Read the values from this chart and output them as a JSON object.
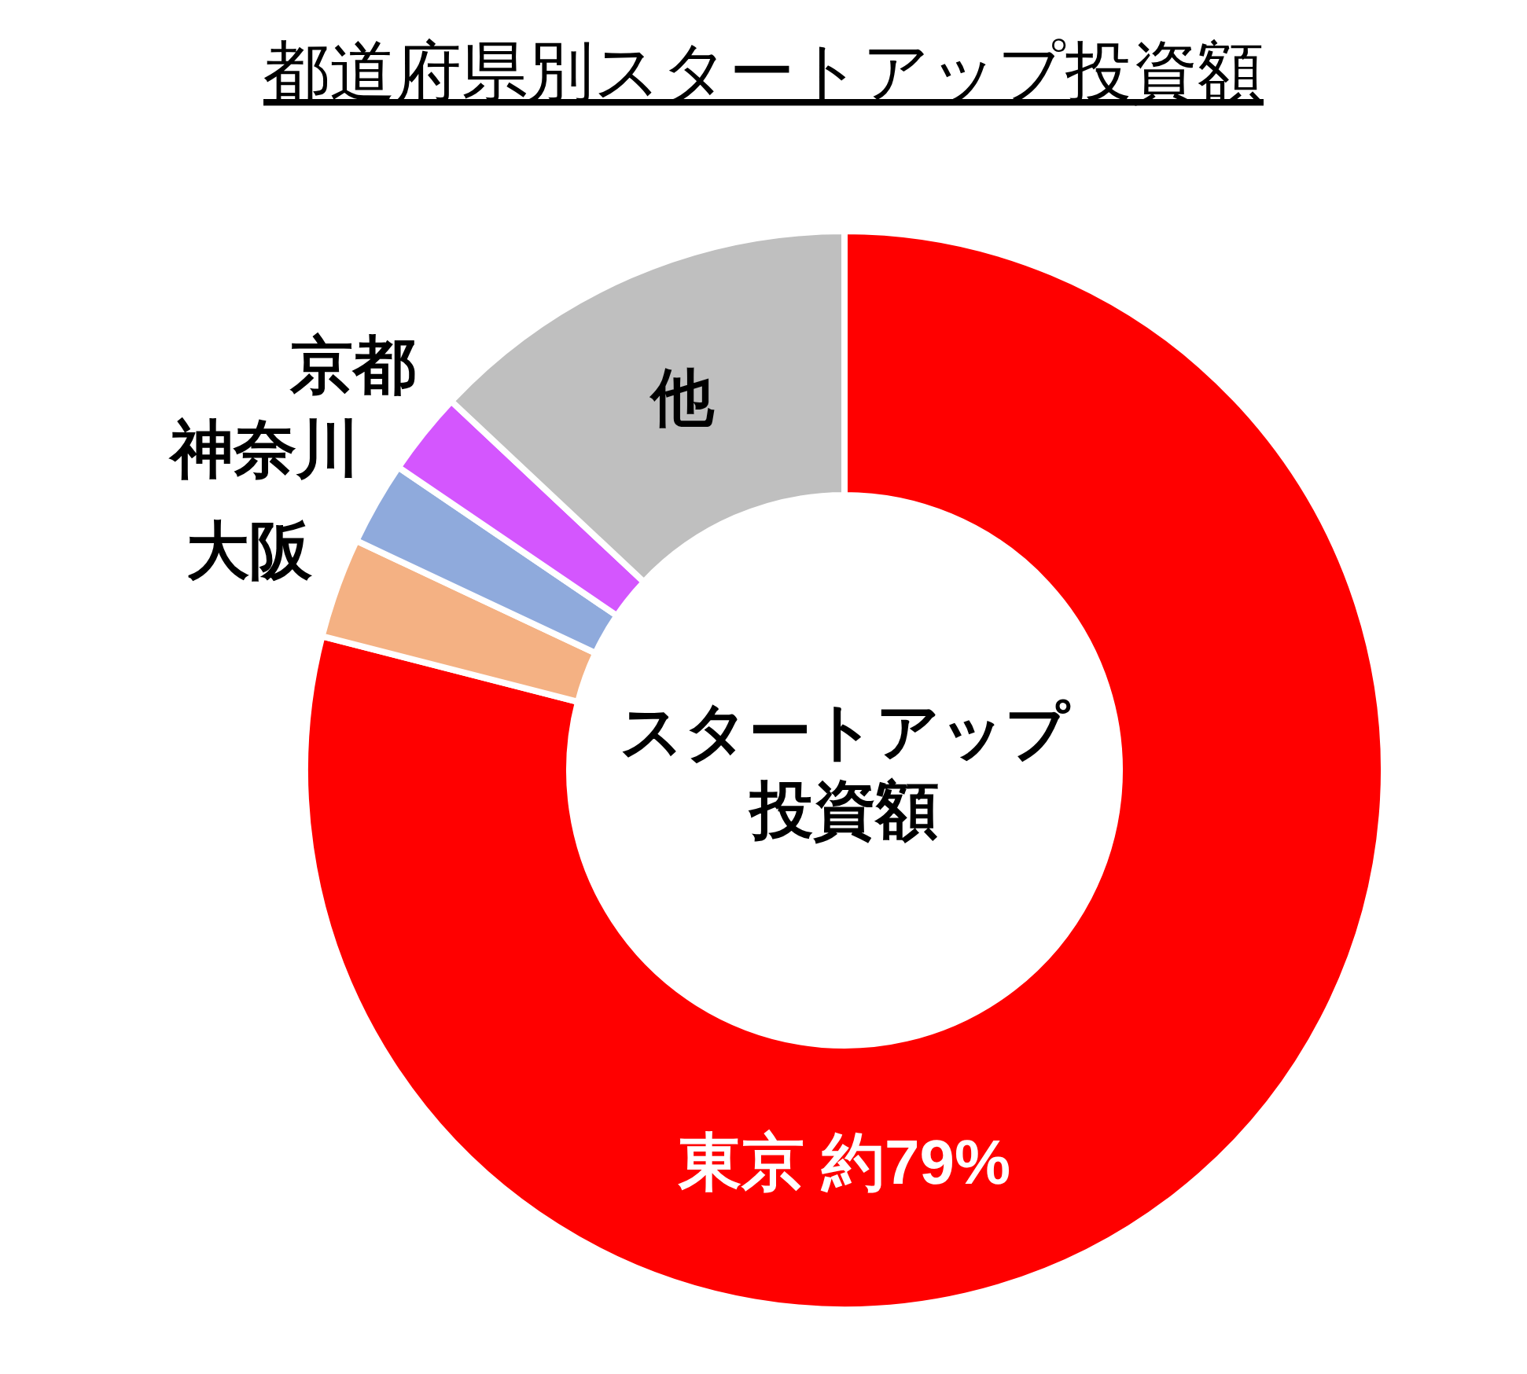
{
  "chart_data": {
    "type": "donut",
    "title": "都道府県別スタートアップ投資額",
    "categories": [
      "東京",
      "大阪",
      "神奈川",
      "京都",
      "他"
    ],
    "values": [
      79,
      3,
      2.5,
      2.5,
      13
    ],
    "colors": [
      "#ff0000",
      "#f4b183",
      "#8faadc",
      "#d456fe",
      "#bfbfbf"
    ],
    "value_labels": [
      "約79%",
      null,
      null,
      null,
      null
    ],
    "annotations": [
      "スタートアップ",
      "投資額"
    ]
  }
}
